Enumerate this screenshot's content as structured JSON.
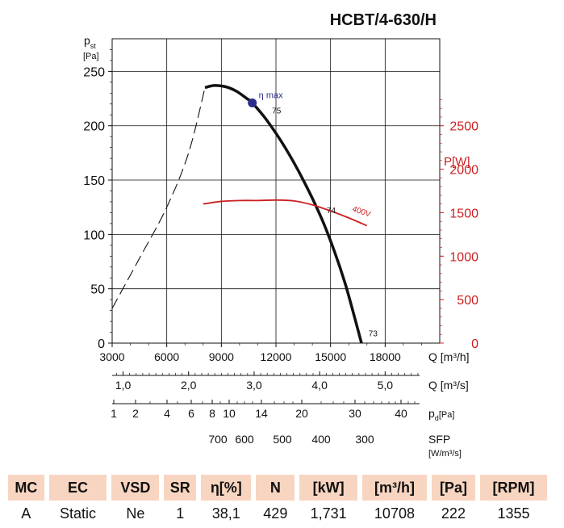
{
  "title": "HCBT/4-630/H",
  "chart_data": {
    "type": "line",
    "title": "HCBT/4-630/H",
    "left_axis": {
      "label_main": "p",
      "label_sub": "st",
      "unit": "[Pa]",
      "range": [
        0,
        280
      ],
      "ticks": [
        "0",
        "50",
        "100",
        "150",
        "200",
        "250"
      ]
    },
    "right_axis": {
      "label": "P[W]",
      "range": [
        0,
        3500
      ],
      "ticks": [
        "0",
        "500",
        "1000",
        "1500",
        "2000",
        "2500"
      ]
    },
    "x_axis": {
      "label": "Q [m³/h]",
      "range": [
        3000,
        21000
      ],
      "ticks": [
        "3000",
        "6000",
        "9000",
        "12000",
        "15000",
        "18000"
      ]
    },
    "secondary_axes": [
      {
        "label": "Q [m³/s]",
        "ticks": [
          "1,0",
          "2,0",
          "3,0",
          "4,0",
          "5,0"
        ]
      },
      {
        "label": "pd[Pa]",
        "label_main": "p",
        "label_sub": "d",
        "unit": "[Pa]",
        "ticks": [
          "1",
          "2",
          "4",
          "6",
          "8",
          "10",
          "14",
          "20",
          "30",
          "40"
        ]
      },
      {
        "label": "SFP [W/m³/s]",
        "label_main": "SFP",
        "unit": "[W/m³/s]",
        "ticks": [
          "700",
          "600",
          "500",
          "400",
          "300"
        ]
      }
    ],
    "series": [
      {
        "name": "pressure (unstable, dashed)",
        "axis": "left",
        "style": "dashed",
        "x": [
          3000,
          4500,
          6000,
          7200,
          8100
        ],
        "y": [
          32,
          78,
          125,
          175,
          235
        ]
      },
      {
        "name": "pressure",
        "axis": "left",
        "style": "solid",
        "x": [
          8100,
          8600,
          9200,
          9800,
          10400,
          10700,
          11500,
          12500,
          13500,
          14500,
          15200,
          15800,
          16300,
          16700
        ],
        "y": [
          235,
          237,
          236,
          232,
          225,
          221,
          205,
          180,
          150,
          115,
          85,
          55,
          25,
          0
        ]
      },
      {
        "name": "400V",
        "axis": "right",
        "style": "solid",
        "x": [
          8000,
          9000,
          10000,
          11000,
          12000,
          13000,
          14000,
          15000,
          16000,
          17000
        ],
        "y": [
          1600,
          1630,
          1640,
          1640,
          1645,
          1635,
          1590,
          1520,
          1440,
          1350
        ]
      }
    ],
    "annotations": [
      {
        "text": "η max",
        "x": 10700,
        "y": 221
      },
      {
        "text": "75",
        "x": 11700,
        "y": 210
      },
      {
        "text": "74",
        "x": 14700,
        "y": 118
      },
      {
        "text": "73",
        "x": 17000,
        "y": 5
      },
      {
        "text": "400V",
        "x": 15900,
        "y": 1500
      }
    ],
    "eta_max_point": {
      "x": 10700,
      "y": 221
    }
  },
  "spec_table": {
    "headers": [
      "MC",
      "EC",
      "VSD",
      "SR",
      "η[%]",
      "N",
      "[kW]",
      "[m³/h]",
      "[Pa]",
      "[RPM]"
    ],
    "values": [
      "A",
      "Static",
      "Ne",
      "1",
      "38,1",
      "429",
      "1,731",
      "10708",
      "222",
      "1355"
    ]
  },
  "colors": {
    "pressure": "#111111",
    "power": "#cc1f1f",
    "eta_point": "#2c2c8a",
    "table_header": "#f8d5c0"
  }
}
